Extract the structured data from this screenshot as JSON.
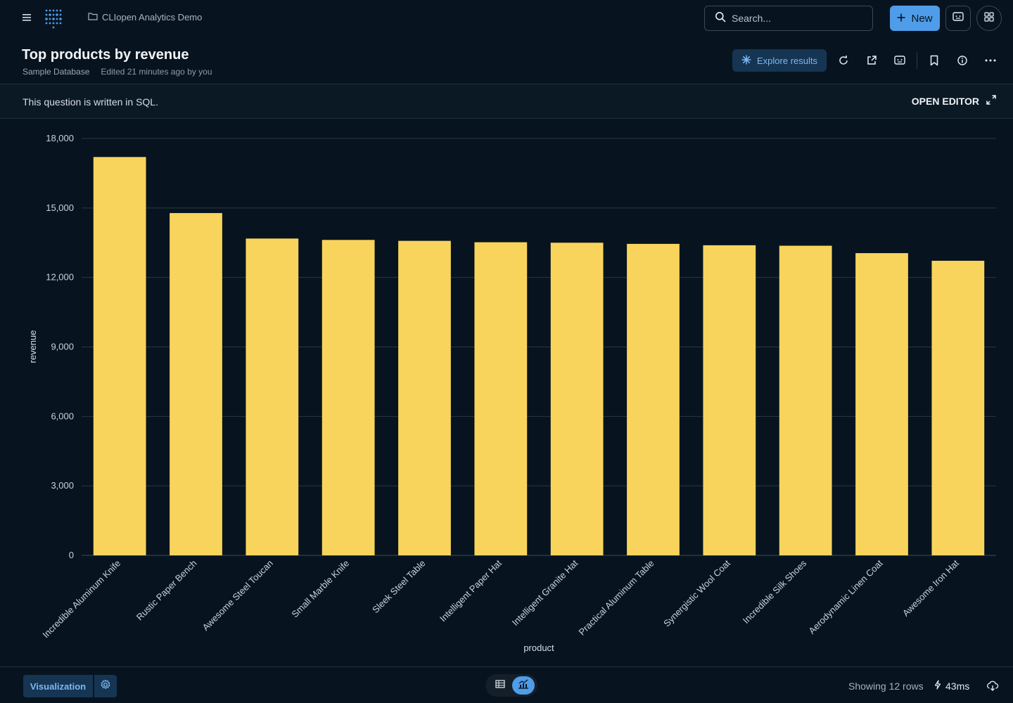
{
  "app": {
    "collection_name": "CLIopen Analytics Demo"
  },
  "search": {
    "placeholder": "Search..."
  },
  "top_actions": {
    "new_label": "New"
  },
  "question": {
    "title": "Top products by revenue",
    "database": "Sample Database",
    "edited": "Edited 21 minutes ago by you",
    "explore_label": "Explore results"
  },
  "notice": {
    "text": "This question is written in SQL.",
    "open_editor_label": "OPEN EDITOR"
  },
  "chart_data": {
    "type": "bar",
    "xlabel": "product",
    "ylabel": "revenue",
    "ylim": [
      0,
      18000
    ],
    "yticks": [
      0,
      3000,
      6000,
      9000,
      12000,
      15000,
      18000
    ],
    "grid": true,
    "bar_color": "#f9d45c",
    "categories": [
      "Incredible Aluminum Knife",
      "Rustic Paper Bench",
      "Awesome Steel Toucan",
      "Small Marble Knife",
      "Sleek Steel Table",
      "Intelligent Paper Hat",
      "Intelligent Granite Hat",
      "Practical Aluminum Table",
      "Synergistic Wool Coat",
      "Incredible Silk Shoes",
      "Aerodynamic Linen Coat",
      "Awesome Iron Hat"
    ],
    "values": [
      17200,
      14780,
      13680,
      13620,
      13580,
      13520,
      13500,
      13450,
      13390,
      13370,
      13050,
      12720
    ]
  },
  "footer": {
    "visualization_label": "Visualization",
    "rows_text": "Showing 12 rows",
    "timing": "43ms"
  },
  "colors": {
    "background": "#07141f",
    "accent": "#4f9ce8",
    "bar": "#f9d45c"
  }
}
